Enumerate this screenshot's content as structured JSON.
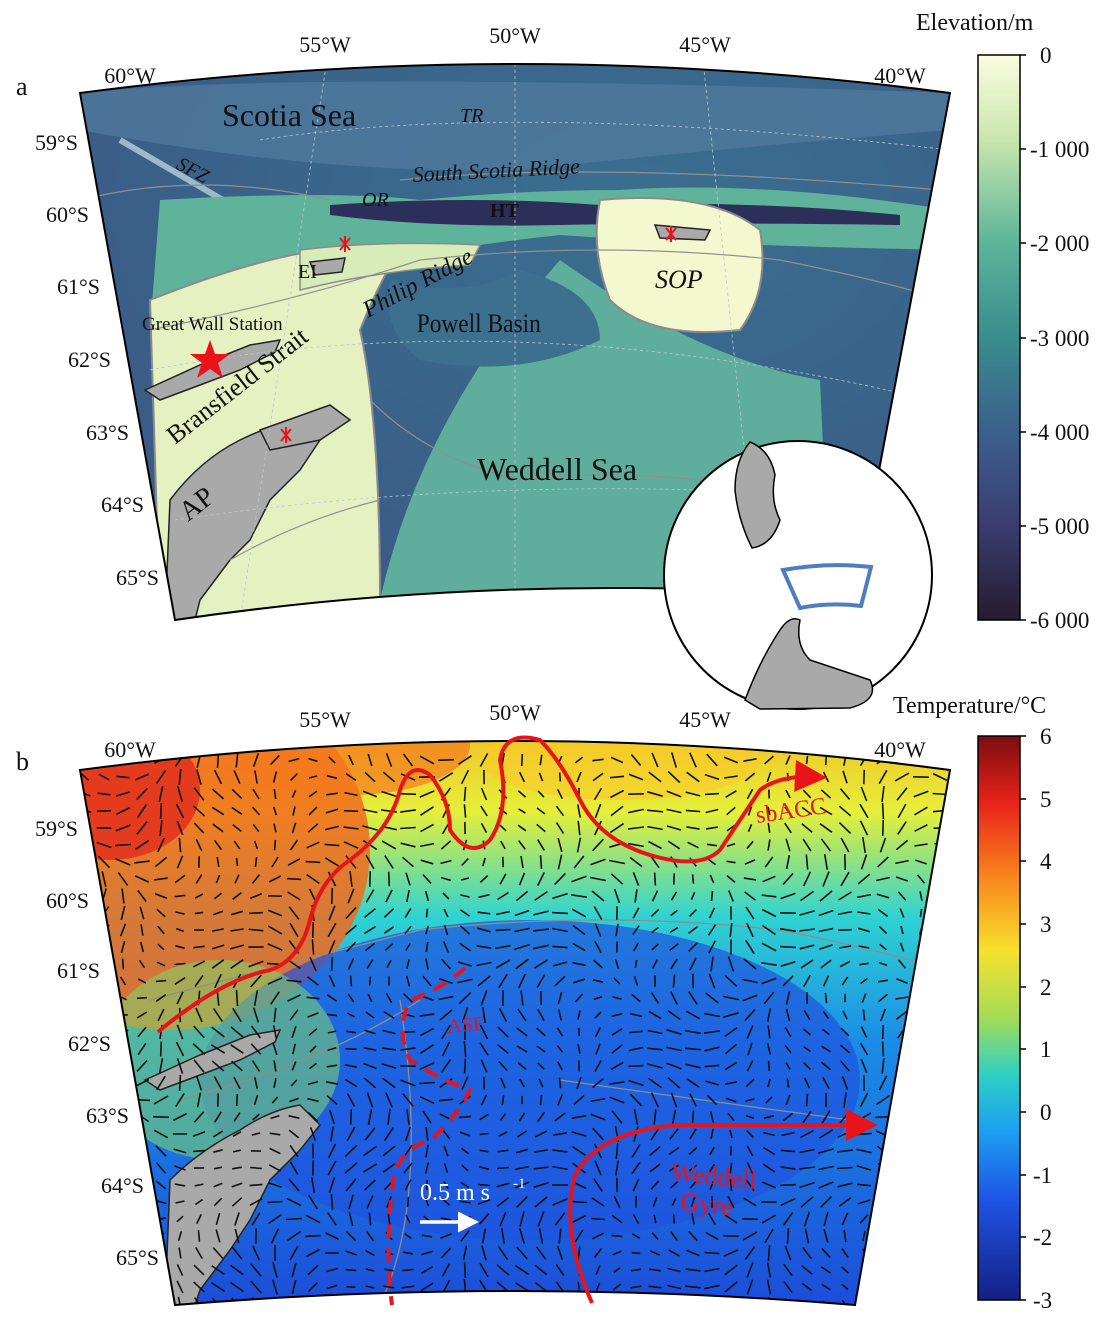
{
  "panel_a": {
    "letter": "a",
    "colorbar_title": "Elevation/m",
    "colorbar_ticks": [
      "0",
      "-1 000",
      "-2 000",
      "-3 000",
      "-4 000",
      "-5 000",
      "-6 000"
    ],
    "lon_labels": [
      "60°W",
      "55°W",
      "50°W",
      "45°W",
      "40°W"
    ],
    "lat_labels": [
      "59°S",
      "60°S",
      "61°S",
      "62°S",
      "63°S",
      "64°S",
      "65°S"
    ],
    "place_labels": {
      "scotia_sea": "Scotia Sea",
      "tr": "TR",
      "sfz": "SFZ",
      "south_scotia_ridge": "South Scotia Ridge",
      "or": "OR",
      "ht": "HT",
      "ei": "EI",
      "philip_ridge": "Philip Ridge",
      "sop": "SOP",
      "great_wall_station": "Great Wall Station",
      "powell_basin": "Powell Basin",
      "bransfield_strait": "Bransfield Strait",
      "weddell_sea": "Weddell Sea",
      "ap": "AP"
    },
    "colors": {
      "land": "#a9a9a9",
      "marker": "#e8141a",
      "inset_box": "#4f7ec0"
    }
  },
  "panel_b": {
    "letter": "b",
    "colorbar_title": "Temperature/°C",
    "colorbar_ticks": [
      "6",
      "5",
      "4",
      "3",
      "2",
      "1",
      "0",
      "-1",
      "-2",
      "-3"
    ],
    "lon_labels": [
      "60°W",
      "55°W",
      "50°W",
      "45°W",
      "40°W"
    ],
    "lat_labels": [
      "59°S",
      "60°S",
      "61°S",
      "62°S",
      "63°S",
      "64°S",
      "65°S"
    ],
    "annotations": {
      "sbacc": "sbACC",
      "asf": "ASF",
      "weddell_gyre_1": "Weddell",
      "weddell_gyre_2": "Gyre"
    },
    "scale_arrow_label": "0.5 m s",
    "scale_arrow_exp": "-1",
    "colors": {
      "front": "#e8141a",
      "vectors": "#111111",
      "scale_arrow": "#ffffff"
    }
  }
}
